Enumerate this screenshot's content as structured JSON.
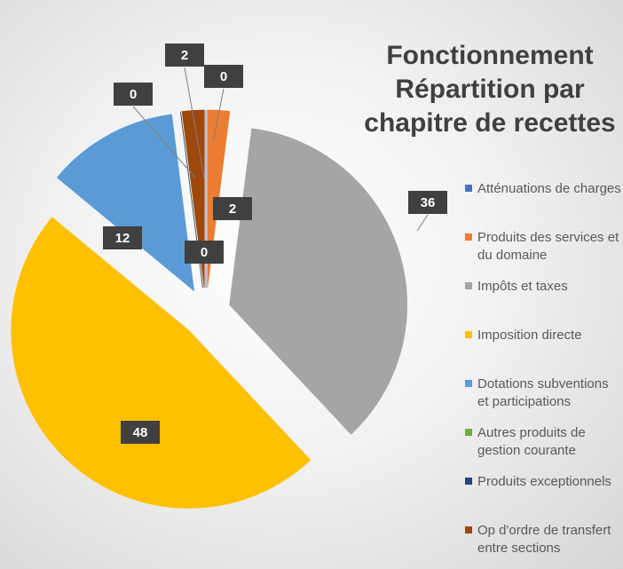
{
  "chart_data": {
    "type": "pie",
    "title": "Fonctionnement Répartition par chapitre de recettes",
    "categories": [
      "Atténuations de charges",
      "Produits des services et du domaine",
      "Impôts et taxes",
      "Imposition directe",
      "Dotations subventions et participations",
      "Autres produits de gestion courante",
      "Produits exceptionnels",
      "Op d'ordre de transfert entre sections"
    ],
    "values": [
      0,
      2,
      36,
      48,
      12,
      0,
      0,
      2
    ],
    "colors": [
      "#4472c4",
      "#ed7d31",
      "#a5a5a5",
      "#ffc000",
      "#5b9bd5",
      "#70ad47",
      "#264478",
      "#9e480e"
    ],
    "legend": "right"
  }
}
